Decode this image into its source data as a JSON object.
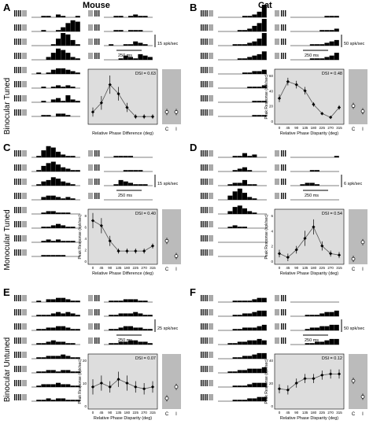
{
  "headers": {
    "left": "Mouse",
    "right": "Cat"
  },
  "row_labels": [
    "Binocular Tuned",
    "Monocular Tuned",
    "Binocular Untuned"
  ],
  "panels": [
    {
      "letter": "A",
      "scale_spk": "15 spk/sec",
      "scale_ms": "250 ms"
    },
    {
      "letter": "B",
      "scale_spk": "50 spk/sec",
      "scale_ms": "250 ms"
    },
    {
      "letter": "C",
      "scale_spk": "15 spk/sec",
      "scale_ms": "250 ms"
    },
    {
      "letter": "D",
      "scale_spk": "6 spk/sec",
      "scale_ms": "250 ms"
    },
    {
      "letter": "E",
      "scale_spk": "25 spk/sec",
      "scale_ms": "250 ms"
    },
    {
      "letter": "F",
      "scale_spk": "50 spk/sec",
      "scale_ms": "250 ms"
    }
  ],
  "psth_bins": {
    "A": [
      [
        0,
        0,
        1,
        1,
        0,
        2,
        1,
        0,
        0,
        1
      ],
      [
        0,
        0,
        1,
        0,
        0,
        1,
        3,
        6,
        8,
        7
      ],
      [
        0,
        0,
        0,
        0,
        1,
        5,
        9,
        8,
        4,
        1
      ],
      [
        0,
        0,
        0,
        2,
        5,
        8,
        7,
        5,
        2,
        1
      ],
      [
        0,
        1,
        0,
        1,
        3,
        4,
        4,
        3,
        2,
        1
      ],
      [
        0,
        0,
        1,
        0,
        1,
        2,
        1,
        2,
        1,
        0
      ],
      [
        0,
        0,
        1,
        0,
        2,
        3,
        1,
        5,
        2,
        1
      ],
      [
        0,
        0,
        1,
        1,
        0,
        2,
        2,
        1,
        0,
        0
      ],
      [
        0,
        0,
        1,
        1,
        0,
        1,
        2,
        1,
        1,
        0
      ],
      [
        0,
        0,
        1,
        1,
        0,
        1,
        1,
        1,
        0,
        0
      ],
      [
        0,
        1,
        0,
        0,
        1,
        1,
        3,
        2,
        1,
        0
      ],
      [
        0,
        0,
        0,
        1,
        3,
        2,
        1,
        4,
        3,
        2
      ]
    ],
    "B": [
      [
        0,
        0,
        0,
        0,
        0,
        1,
        1,
        2,
        4,
        12
      ],
      [
        0,
        0,
        0,
        0,
        1,
        1,
        2,
        4,
        6,
        14
      ],
      [
        0,
        0,
        0,
        1,
        1,
        1,
        2,
        3,
        5,
        9
      ],
      [
        0,
        0,
        0,
        0,
        1,
        1,
        2,
        3,
        4,
        6
      ],
      [
        0,
        0,
        0,
        0,
        0,
        1,
        1,
        2,
        2,
        3
      ],
      [
        0,
        0,
        0,
        0,
        0,
        0,
        1,
        1,
        1,
        2
      ],
      [
        0,
        0,
        0,
        0,
        0,
        0,
        0,
        1,
        1,
        1
      ],
      [
        0,
        0,
        0,
        0,
        0,
        0,
        0,
        1,
        1,
        1
      ],
      [
        0,
        0,
        0,
        0,
        0,
        0,
        0,
        1,
        1,
        1
      ],
      [
        0,
        0,
        0,
        0,
        0,
        0,
        1,
        1,
        1,
        2
      ],
      [
        0,
        0,
        0,
        0,
        1,
        1,
        1,
        2,
        3,
        4
      ],
      [
        0,
        0,
        0,
        0,
        1,
        1,
        1,
        2,
        3,
        5
      ]
    ],
    "C": [
      [
        0,
        1,
        5,
        8,
        7,
        4,
        2,
        1,
        1,
        0
      ],
      [
        0,
        1,
        4,
        6,
        7,
        5,
        3,
        2,
        1,
        1
      ],
      [
        0,
        1,
        3,
        4,
        6,
        5,
        3,
        2,
        1,
        0
      ],
      [
        0,
        0,
        2,
        3,
        3,
        2,
        1,
        2,
        1,
        0
      ],
      [
        0,
        0,
        1,
        2,
        2,
        1,
        1,
        1,
        0,
        0
      ],
      [
        0,
        0,
        1,
        1,
        2,
        3,
        2,
        1,
        1,
        0
      ],
      [
        0,
        0,
        1,
        2,
        1,
        2,
        1,
        1,
        1,
        0
      ],
      [
        0,
        0,
        1,
        1,
        1,
        1,
        1,
        0,
        0,
        0
      ],
      [
        0,
        0,
        1,
        1,
        1,
        1,
        0,
        0,
        0,
        0
      ],
      [
        0,
        0,
        0,
        0,
        1,
        1,
        1,
        1,
        0,
        0
      ],
      [
        0,
        0,
        1,
        4,
        3,
        2,
        1,
        1,
        1,
        0
      ],
      [
        0,
        0,
        0,
        0,
        0,
        0,
        0,
        0,
        0,
        0
      ]
    ],
    "D": [
      [
        0,
        0,
        0,
        1,
        1,
        3,
        1,
        2,
        0,
        0
      ],
      [
        0,
        0,
        0,
        1,
        2,
        3,
        1,
        0,
        0,
        0
      ],
      [
        0,
        0,
        1,
        2,
        2,
        4,
        1,
        1,
        0,
        0
      ],
      [
        0,
        0,
        3,
        6,
        8,
        5,
        2,
        1,
        0,
        0
      ],
      [
        0,
        0,
        2,
        5,
        6,
        4,
        2,
        1,
        0,
        0
      ],
      [
        0,
        0,
        1,
        2,
        1,
        1,
        0,
        0,
        0,
        0
      ],
      [
        0,
        0,
        0,
        0,
        0,
        0,
        0,
        0,
        0,
        0
      ],
      [
        0,
        0,
        0,
        0,
        0,
        0,
        0,
        0,
        0,
        0
      ],
      [
        0,
        0,
        0,
        0,
        0,
        0,
        0,
        0,
        0,
        1
      ],
      [
        0,
        0,
        0,
        0,
        1,
        1,
        0,
        0,
        0,
        0
      ],
      [
        0,
        0,
        1,
        2,
        2,
        1,
        0,
        0,
        0,
        0
      ],
      [
        0,
        0,
        0,
        0,
        0,
        0,
        0,
        0,
        0,
        0
      ]
    ],
    "E": [
      [
        0,
        1,
        0,
        2,
        2,
        3,
        3,
        2,
        1,
        1
      ],
      [
        0,
        1,
        1,
        1,
        2,
        3,
        2,
        3,
        2,
        1
      ],
      [
        0,
        1,
        1,
        2,
        2,
        3,
        3,
        2,
        1,
        1
      ],
      [
        0,
        1,
        1,
        2,
        3,
        2,
        2,
        1,
        1,
        0
      ],
      [
        0,
        1,
        1,
        2,
        2,
        2,
        3,
        2,
        1,
        1
      ],
      [
        0,
        1,
        1,
        2,
        2,
        1,
        2,
        2,
        1,
        1
      ],
      [
        0,
        1,
        2,
        2,
        2,
        3,
        2,
        2,
        1,
        1
      ],
      [
        0,
        1,
        1,
        2,
        1,
        2,
        2,
        1,
        1,
        1
      ],
      [
        0,
        1,
        1,
        1,
        2,
        2,
        2,
        1,
        1,
        0
      ],
      [
        0,
        1,
        1,
        2,
        2,
        2,
        3,
        2,
        1,
        1
      ],
      [
        0,
        1,
        1,
        2,
        3,
        3,
        2,
        2,
        1,
        1
      ],
      [
        0,
        1,
        1,
        2,
        2,
        3,
        3,
        2,
        2,
        1
      ]
    ],
    "F": [
      [
        0,
        0,
        0,
        1,
        1,
        1,
        1,
        2,
        3,
        3
      ],
      [
        0,
        0,
        0,
        1,
        1,
        2,
        2,
        3,
        4,
        4
      ],
      [
        0,
        0,
        0,
        1,
        1,
        2,
        2,
        2,
        3,
        4
      ],
      [
        0,
        0,
        1,
        1,
        2,
        2,
        3,
        3,
        4,
        3
      ],
      [
        0,
        0,
        0,
        1,
        1,
        2,
        2,
        3,
        4,
        4
      ],
      [
        0,
        0,
        1,
        1,
        2,
        2,
        3,
        3,
        3,
        4
      ],
      [
        0,
        0,
        0,
        1,
        1,
        1,
        2,
        3,
        3,
        3
      ],
      [
        0,
        0,
        0,
        1,
        1,
        1,
        2,
        2,
        3,
        3
      ],
      [
        0,
        0,
        0,
        0,
        0,
        0,
        0,
        0,
        0,
        0
      ],
      [
        0,
        0,
        0,
        1,
        1,
        1,
        2,
        3,
        3,
        4
      ],
      [
        0,
        0,
        0,
        1,
        2,
        2,
        3,
        3,
        4,
        4
      ],
      [
        0,
        0,
        0,
        1,
        1,
        2,
        2,
        3,
        4,
        4
      ]
    ]
  },
  "chart_data": [
    {
      "panel": "A",
      "type": "scatter",
      "xlabel": "Relative Phase Difference (deg)",
      "ylabel": "",
      "dsi": "DSI = 0.63",
      "x": [
        0,
        45,
        90,
        135,
        180,
        225,
        270,
        315
      ],
      "y": [
        2,
        4,
        8,
        6,
        3,
        1,
        1,
        1
      ],
      "err": [
        1,
        1.5,
        2,
        1.5,
        1,
        0.5,
        0.5,
        0.5
      ],
      "xticks": [],
      "ylim": [
        0,
        10
      ],
      "cond_labels": [
        "C",
        "I"
      ],
      "cond_values": [
        2,
        2
      ]
    },
    {
      "panel": "B",
      "type": "scatter",
      "xlabel": "Relative Phase Disparity (deg)",
      "ylabel": "Peak Response (spk/sec)",
      "dsi": "DSI = 0.48",
      "x": [
        0,
        45,
        90,
        135,
        180,
        225,
        270,
        315
      ],
      "y": [
        30,
        52,
        48,
        40,
        22,
        10,
        5,
        18
      ],
      "err": [
        5,
        5,
        5,
        5,
        3,
        2,
        2,
        3
      ],
      "xticks": [
        "0",
        "45",
        "90",
        "135",
        "180",
        "225",
        "270",
        "315"
      ],
      "yticks": [
        "0",
        "20",
        "40",
        "60"
      ],
      "ylim": [
        0,
        60
      ],
      "cond_labels": [
        "C",
        "I"
      ],
      "cond_values": [
        20,
        13
      ]
    },
    {
      "panel": "C",
      "type": "scatter",
      "xlabel": "Relative Phase Difference (deg)",
      "ylabel": "Peak Response (spk/sec)",
      "dsi": "DSI = 0.40",
      "x": [
        0,
        45,
        90,
        135,
        180,
        225,
        270,
        315
      ],
      "y": [
        8,
        7,
        4,
        2,
        2,
        2,
        2,
        3
      ],
      "err": [
        1.5,
        1.5,
        1,
        0.5,
        0.5,
        0.5,
        0.5,
        0.5
      ],
      "xticks": [
        "0",
        "45",
        "90",
        "135",
        "180",
        "225",
        "270",
        "315"
      ],
      "yticks": [
        "0",
        "2",
        "4",
        "6",
        "8"
      ],
      "ylim": [
        0,
        9
      ],
      "cond_labels": [
        "C",
        "I"
      ],
      "cond_values": [
        4,
        1
      ]
    },
    {
      "panel": "D",
      "type": "scatter",
      "xlabel": "Relative Phase Disparity (deg)",
      "ylabel": "Peak Response (spk/sec)",
      "dsi": "DSI = 0.54",
      "x": [
        0,
        45,
        90,
        135,
        180,
        225,
        270,
        315
      ],
      "y": [
        1,
        0.5,
        1.5,
        3,
        4.5,
        2,
        1,
        0.8
      ],
      "err": [
        0.5,
        0.5,
        0.5,
        1,
        1,
        0.6,
        0.4,
        0.4
      ],
      "xticks": [
        "0",
        "45",
        "90",
        "135",
        "180",
        "225",
        "270",
        "315"
      ],
      "yticks": [
        "0",
        "2",
        "4",
        "6"
      ],
      "ylim": [
        0,
        6
      ],
      "cond_labels": [
        "C",
        "I"
      ],
      "cond_values": [
        0.3,
        2.5
      ]
    },
    {
      "panel": "E",
      "type": "scatter",
      "xlabel": "Relative Phase Disparity (deg)",
      "ylabel": "Peak Response (spk/sec)",
      "dsi": "DSI = 0.07",
      "x": [
        0,
        45,
        90,
        135,
        180,
        225,
        270,
        315
      ],
      "y": [
        10,
        12,
        10,
        14,
        12,
        10,
        9,
        10
      ],
      "err": [
        4,
        4,
        3,
        4,
        4,
        3,
        3,
        3
      ],
      "xticks": [
        "0",
        "45",
        "90",
        "135",
        "180",
        "225",
        "270",
        "315"
      ],
      "yticks": [
        "0",
        "10",
        "20"
      ],
      "ylim": [
        0,
        24
      ],
      "cond_labels": [
        "C",
        "I"
      ],
      "cond_values": [
        4,
        10
      ]
    },
    {
      "panel": "F",
      "type": "scatter",
      "xlabel": "Relative Phase Disparity (deg)",
      "ylabel": "Peak Response (spk/sec)",
      "dsi": "DSI = 0.12",
      "x": [
        0,
        45,
        90,
        135,
        180,
        225,
        270,
        315
      ],
      "y": [
        15,
        14,
        20,
        24,
        24,
        27,
        28,
        28
      ],
      "err": [
        4,
        4,
        4,
        4,
        4,
        4,
        4,
        4
      ],
      "xticks": [
        "0",
        "45",
        "90",
        "135",
        "180",
        "225",
        "270",
        "315"
      ],
      "yticks": [
        "0",
        "20",
        "40"
      ],
      "ylim": [
        0,
        40
      ],
      "cond_labels": [
        "C",
        "I"
      ],
      "cond_values": [
        22,
        8
      ]
    }
  ]
}
